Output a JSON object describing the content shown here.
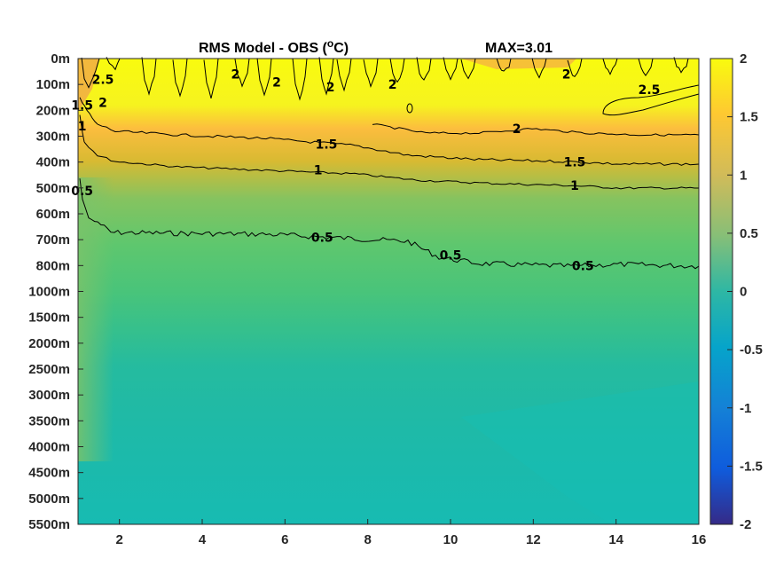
{
  "chart_data": {
    "type": "heatmap",
    "title": "RMS Model - OBS (",
    "title_unit_sup": "o",
    "title_unit_end": "C)",
    "max_label": "MAX=3.01",
    "xlim": [
      1,
      16
    ],
    "x_ticks": [
      "2",
      "4",
      "6",
      "8",
      "10",
      "12",
      "14",
      "16"
    ],
    "y_levels": [
      "0m",
      "100m",
      "200m",
      "300m",
      "400m",
      "500m",
      "600m",
      "700m",
      "800m",
      "1000m",
      "1500m",
      "2000m",
      "2500m",
      "3000m",
      "3500m",
      "4000m",
      "4500m",
      "5000m",
      "5500m"
    ],
    "clim": [
      -2,
      2
    ],
    "colorbar_ticks": [
      "2",
      "1.5",
      "1",
      "0.5",
      "0",
      "-0.5",
      "-1",
      "-1.5",
      "-2"
    ],
    "colormap": "parula",
    "profile_by_level": [
      3.0,
      2.6,
      2.2,
      1.6,
      1.2,
      0.9,
      0.75,
      0.6,
      0.5,
      0.45,
      0.38,
      0.3,
      0.25,
      0.22,
      0.2,
      0.18,
      0.18,
      0.18,
      0.18
    ],
    "contours": [
      {
        "level": "2.5",
        "labels": [
          {
            "x": 1.6,
            "y": 0.8
          },
          {
            "x": 14.8,
            "y": 1.2
          }
        ]
      },
      {
        "level": "2",
        "labels": [
          {
            "x": 4.8,
            "y": 0.6
          },
          {
            "x": 5.8,
            "y": 0.9
          },
          {
            "x": 7.1,
            "y": 1.1
          },
          {
            "x": 8.6,
            "y": 1.0
          },
          {
            "x": 12.8,
            "y": 0.6
          },
          {
            "x": 11.6,
            "y": 2.7
          },
          {
            "x": 1.6,
            "y": 1.7
          }
        ]
      },
      {
        "level": "1.5",
        "labels": [
          {
            "x": 7.0,
            "y": 3.3
          },
          {
            "x": 13.0,
            "y": 4.0
          },
          {
            "x": 1.1,
            "y": 1.8
          }
        ]
      },
      {
        "level": "1",
        "labels": [
          {
            "x": 6.8,
            "y": 4.3
          },
          {
            "x": 13.0,
            "y": 4.9
          },
          {
            "x": 1.1,
            "y": 2.6
          }
        ]
      },
      {
        "level": "0.5",
        "labels": [
          {
            "x": 6.9,
            "y": 6.9
          },
          {
            "x": 10.0,
            "y": 7.6
          },
          {
            "x": 13.2,
            "y": 8.0
          },
          {
            "x": 1.1,
            "y": 5.1
          }
        ]
      }
    ]
  }
}
